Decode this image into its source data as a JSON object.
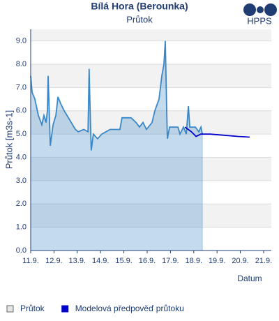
{
  "chart_data": {
    "type": "line",
    "title": "Bílá Hora (Berounka)",
    "subtitle": "Průtok",
    "logo": "HPPS",
    "xlabel": "Datum",
    "ylabel": "Průtok [m3s-1]",
    "xlim": [
      11,
      21.33
    ],
    "ylim": [
      0,
      9.5
    ],
    "xticks": [
      {
        "value": 11,
        "label": "11.9."
      },
      {
        "value": 12,
        "label": "12.9."
      },
      {
        "value": 13,
        "label": "13.9."
      },
      {
        "value": 14,
        "label": "14.9."
      },
      {
        "value": 15,
        "label": "15.9."
      },
      {
        "value": 16,
        "label": "16.9."
      },
      {
        "value": 17,
        "label": "17.9."
      },
      {
        "value": 18,
        "label": "18.9."
      },
      {
        "value": 19,
        "label": "19.9."
      },
      {
        "value": 20,
        "label": "20.9."
      },
      {
        "value": 21,
        "label": "21.9."
      }
    ],
    "yticks": [
      {
        "value": 0,
        "label": "0.0"
      },
      {
        "value": 1,
        "label": "1.0"
      },
      {
        "value": 2,
        "label": "2.0"
      },
      {
        "value": 3,
        "label": "3.0"
      },
      {
        "value": 4,
        "label": "4.0"
      },
      {
        "value": 5,
        "label": "5.0"
      },
      {
        "value": 6,
        "label": "6.0"
      },
      {
        "value": 7,
        "label": "7.0"
      },
      {
        "value": 8,
        "label": "8.0"
      },
      {
        "value": 9,
        "label": "9.0"
      }
    ],
    "grid": true,
    "series": [
      {
        "name": "Průtok",
        "color": "#3a87c8",
        "fill": true,
        "x": [
          11.0,
          11.06,
          11.18,
          11.33,
          11.48,
          11.57,
          11.66,
          11.72,
          11.75,
          11.84,
          11.96,
          12.08,
          12.17,
          12.29,
          12.44,
          12.56,
          12.68,
          12.8,
          12.92,
          13.04,
          13.28,
          13.46,
          13.51,
          13.54,
          13.6,
          13.69,
          13.87,
          14.05,
          14.41,
          14.83,
          14.92,
          15.31,
          15.52,
          15.67,
          15.82,
          15.97,
          16.21,
          16.33,
          16.51,
          16.63,
          16.72,
          16.78,
          16.84,
          16.87,
          16.96,
          17.32,
          17.41,
          17.56,
          17.68,
          17.77,
          17.83,
          18.07,
          18.22,
          18.31,
          18.37
        ],
        "values": [
          7.5,
          6.8,
          6.5,
          5.8,
          5.4,
          5.8,
          5.5,
          6.0,
          7.5,
          4.5,
          5.4,
          5.8,
          6.6,
          6.3,
          6.0,
          5.8,
          5.6,
          5.4,
          5.2,
          5.1,
          5.2,
          5.1,
          7.8,
          6.5,
          4.3,
          5.0,
          4.8,
          5.0,
          5.2,
          5.2,
          5.7,
          5.7,
          5.5,
          5.3,
          5.5,
          5.2,
          5.5,
          6.0,
          6.5,
          7.5,
          8.0,
          9.0,
          6.0,
          4.8,
          5.3,
          5.3,
          5.0,
          5.3,
          5.0,
          6.2,
          5.3,
          5.3,
          5.1,
          5.3,
          5.0
        ]
      },
      {
        "name": "Modelová předpověď průtoku",
        "color": "#0000cc",
        "fill": false,
        "x": [
          17.62,
          17.9,
          18.1,
          18.3,
          18.7,
          19.3,
          19.9,
          20.4
        ],
        "values": [
          5.3,
          5.1,
          4.9,
          5.0,
          5.0,
          4.95,
          4.9,
          4.87
        ]
      }
    ]
  }
}
